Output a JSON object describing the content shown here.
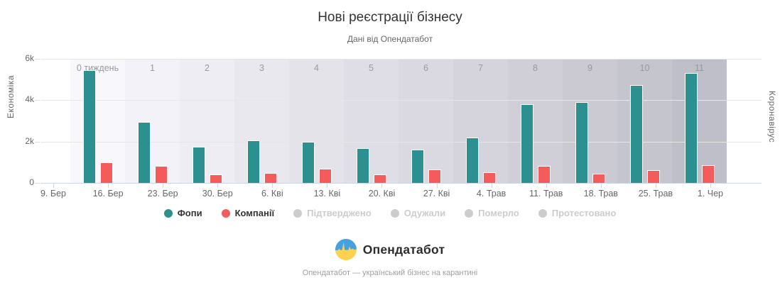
{
  "title": "Нові реєстрації бізнесу",
  "subtitle": "Дані від Опендатабот",
  "axes": {
    "left_title": "Економіка",
    "right_title": "Коронавірус",
    "y_ticks": [
      "0",
      "2k",
      "4k",
      "6k"
    ]
  },
  "chart_data": {
    "type": "bar",
    "title": "Нові реєстрації бізнесу",
    "subtitle": "Дані від Опендатабот",
    "categories": [
      "9. Бер",
      "16. Бер",
      "23. Бер",
      "30. Бер",
      "6. Кві",
      "13. Кві",
      "20. Кві",
      "27. Кві",
      "4. Трав",
      "11. Трав",
      "18. Трав",
      "25. Трав",
      "1. Чер"
    ],
    "week_labels": [
      "0 тиждень",
      "1",
      "2",
      "3",
      "4",
      "5",
      "6",
      "7",
      "8",
      "9",
      "10",
      "11"
    ],
    "series": [
      {
        "name": "Фопи",
        "color": "#2b908f",
        "values": [
          0,
          5450,
          2950,
          1750,
          2050,
          1980,
          1670,
          1610,
          2200,
          3800,
          3900,
          4720,
          5300
        ]
      },
      {
        "name": "Компанії",
        "color": "#f45b5b",
        "values": [
          0,
          1000,
          820,
          430,
          480,
          680,
          430,
          660,
          510,
          830,
          450,
          620,
          860
        ]
      }
    ],
    "xlabel": "",
    "ylabel": "Економіка",
    "ylabel_right": "Коронавірус",
    "ylim": [
      0,
      6000
    ],
    "grid": true,
    "legend_position": "bottom",
    "plot_band_colors": [
      "#f8f7fc",
      "#f3f2f8",
      "#eeedf3",
      "#e9e8ef",
      "#e4e3ea",
      "#dfdee6",
      "#dad9e1",
      "#d5d4dd",
      "#d0cfd8",
      "#cbcad3",
      "#c5c5ce",
      "#bfbfc9"
    ]
  },
  "legend": [
    {
      "label": "Фопи",
      "color": "#2b908f",
      "enabled": true
    },
    {
      "label": "Компанії",
      "color": "#f45b5b",
      "enabled": true
    },
    {
      "label": "Підтверджено",
      "color": "#cccccc",
      "enabled": false
    },
    {
      "label": "Одужали",
      "color": "#cccccc",
      "enabled": false
    },
    {
      "label": "Померло",
      "color": "#cccccc",
      "enabled": false
    },
    {
      "label": "Протестовано",
      "color": "#cccccc",
      "enabled": false
    }
  ],
  "colors": {
    "grid": "#e6e6e6",
    "axis_line": "#ccd6eb",
    "week_label_text": "#999999",
    "axis_text": "#666666",
    "title_text": "#333333",
    "disabled_legend": "#cccccc",
    "logo_blue": "#45a2e2",
    "logo_yellow": "#ffd24d"
  },
  "footer": {
    "logo_text": "Опендатабот",
    "tagline": "Опендатабот — український бізнес на карантині"
  }
}
